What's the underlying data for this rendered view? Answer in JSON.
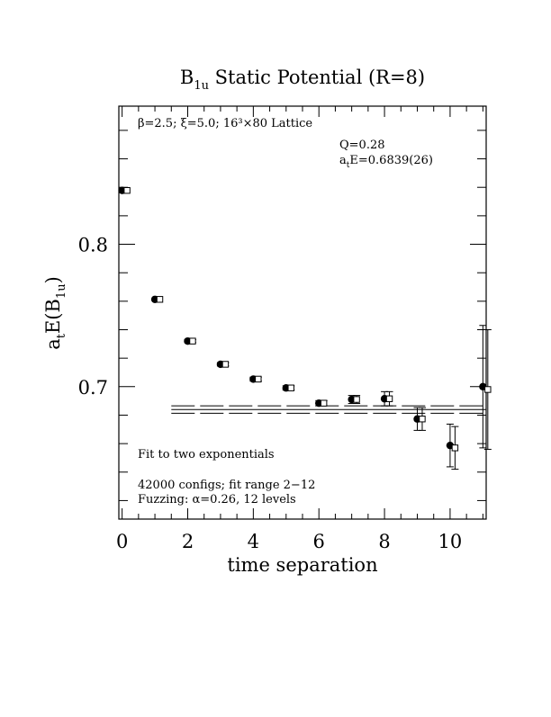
{
  "chart_data": {
    "type": "scatter",
    "title_parts": {
      "main": "B",
      "sub": "1u",
      "rest": " Static Potential (R=8)"
    },
    "xlabel": "time separation",
    "ylabel_parts": {
      "a": "a",
      "a_sub": "t",
      "mid": "E(B",
      "b_sub": "1u",
      "end": ")"
    },
    "xlim": [
      -0.1,
      11.1
    ],
    "ylim": [
      0.607,
      0.897
    ],
    "x_ticks": [
      0,
      2,
      4,
      6,
      8,
      10
    ],
    "y_ticks": [
      0.7,
      0.8
    ],
    "x_tick_labels": [
      "0",
      "2",
      "4",
      "6",
      "8",
      "10"
    ],
    "y_tick_labels": [
      "0.7",
      "0.8"
    ],
    "annotations": {
      "lattice": "β=2.5; ξ=5.0; 16³×80 Lattice",
      "q": "Q=0.28",
      "fit_prefix": "a",
      "fit_sub": "t",
      "fit_value": "E=0.6839(26)",
      "fit_method": "Fit to two exponentials",
      "configs": "42000 configs; fit range 2−12",
      "fuzzing": "Fuzzing: α=0.26, 12 levels"
    },
    "series": [
      {
        "marker": "filled-circle",
        "x": [
          0,
          1,
          2,
          3,
          4,
          5,
          6,
          7,
          8,
          9,
          10,
          11
        ],
        "y": [
          0.8378,
          0.7613,
          0.732,
          0.7157,
          0.7053,
          0.6991,
          0.6884,
          0.691,
          0.6915,
          0.6773,
          0.6587,
          0.7
        ],
        "err": [
          0.0005,
          0.0008,
          0.001,
          0.0012,
          0.0014,
          0.0015,
          0.0018,
          0.0028,
          0.005,
          0.008,
          0.015,
          0.043
        ]
      },
      {
        "marker": "open-square",
        "x": [
          0.15,
          1.15,
          2.15,
          3.15,
          4.15,
          5.15,
          6.15,
          7.15,
          8.15,
          9.15,
          10.15,
          11.15
        ],
        "y": [
          0.8378,
          0.7613,
          0.732,
          0.7157,
          0.7053,
          0.6991,
          0.6884,
          0.691,
          0.6915,
          0.6773,
          0.657,
          0.698
        ],
        "err": [
          0.0005,
          0.0008,
          0.001,
          0.0012,
          0.0014,
          0.0015,
          0.0018,
          0.0028,
          0.005,
          0.008,
          0.015,
          0.042
        ]
      }
    ],
    "fit": {
      "x_range": [
        1.5,
        11.1
      ],
      "value": 0.6839,
      "error": 0.0026
    },
    "colors": {
      "axes": "#000000",
      "markers": "#000000"
    }
  }
}
